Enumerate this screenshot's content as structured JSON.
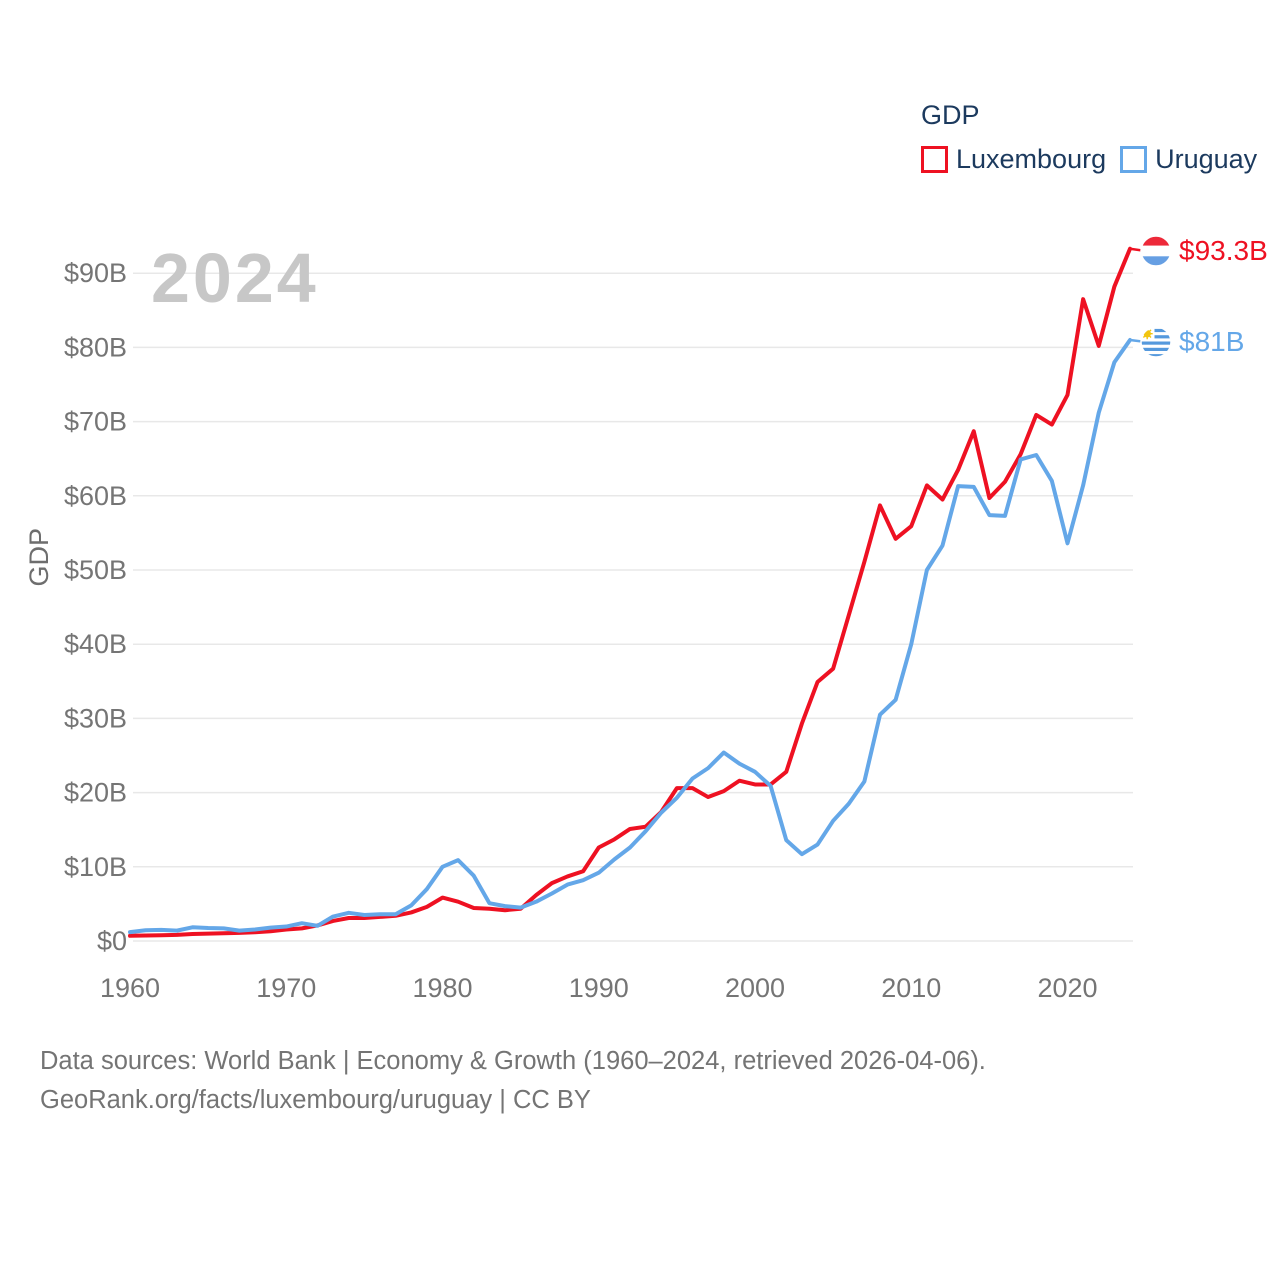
{
  "legend": {
    "title": "GDP",
    "items": [
      {
        "label": "Luxembourg",
        "color": "#ee1122"
      },
      {
        "label": "Uruguay",
        "color": "#64a7e8"
      }
    ]
  },
  "footer": {
    "line1": "Data sources: World Bank | Economy & Growth (1960–2024, retrieved 2026-04-06).",
    "line2": "GeoRank.org/facts/luxembourg/uruguay | CC BY"
  },
  "chart_data": {
    "type": "line",
    "title": "GDP",
    "ylabel": "GDP",
    "xlabel": "",
    "year_watermark": "2024",
    "legend_position": "top-right",
    "grid": "horizontal-only",
    "ylim": [
      0,
      95
    ],
    "xlim": [
      1960,
      2024
    ],
    "x_tick_years": [
      1960,
      1970,
      1980,
      1990,
      2000,
      2010,
      2020
    ],
    "y_tick_labels": [
      "$0",
      "$10B",
      "$20B",
      "$30B",
      "$40B",
      "$50B",
      "$60B",
      "$70B",
      "$80B",
      "$90B"
    ],
    "y_grid_values": [
      0,
      10,
      20,
      30,
      40,
      50,
      60,
      70,
      80,
      90
    ],
    "x": [
      1960,
      1961,
      1962,
      1963,
      1964,
      1965,
      1966,
      1967,
      1968,
      1969,
      1970,
      1971,
      1972,
      1973,
      1974,
      1975,
      1976,
      1977,
      1978,
      1979,
      1980,
      1981,
      1982,
      1983,
      1984,
      1985,
      1986,
      1987,
      1988,
      1989,
      1990,
      1991,
      1992,
      1993,
      1994,
      1995,
      1996,
      1997,
      1998,
      1999,
      2000,
      2001,
      2002,
      2003,
      2004,
      2005,
      2006,
      2007,
      2008,
      2009,
      2010,
      2011,
      2012,
      2013,
      2014,
      2015,
      2016,
      2017,
      2018,
      2019,
      2020,
      2021,
      2022,
      2023,
      2024
    ],
    "series": [
      {
        "name": "Luxembourg",
        "color": "#ee1122",
        "end_label": "$93.3B",
        "flag_icon": "luxembourg-flag-icon",
        "values": [
          0.7,
          0.74,
          0.78,
          0.83,
          0.94,
          1.0,
          1.05,
          1.1,
          1.18,
          1.32,
          1.55,
          1.7,
          2.1,
          2.7,
          3.1,
          3.1,
          3.25,
          3.4,
          3.85,
          4.6,
          5.85,
          5.3,
          4.45,
          4.35,
          4.15,
          4.35,
          6.2,
          7.8,
          8.7,
          9.4,
          12.6,
          13.7,
          15.1,
          15.4,
          17.4,
          20.6,
          20.6,
          19.4,
          20.2,
          21.6,
          21.1,
          21.1,
          22.8,
          29.3,
          34.9,
          36.7,
          43.9,
          51.1,
          58.7,
          54.2,
          55.9,
          61.4,
          59.5,
          63.5,
          68.7,
          59.7,
          61.9,
          65.6,
          70.9,
          69.6,
          73.6,
          86.5,
          80.2,
          88.2,
          93.3
        ]
      },
      {
        "name": "Uruguay",
        "color": "#64a7e8",
        "end_label": "$81B",
        "flag_icon": "uruguay-flag-icon",
        "values": [
          1.2,
          1.45,
          1.5,
          1.4,
          1.85,
          1.75,
          1.7,
          1.4,
          1.55,
          1.8,
          1.95,
          2.4,
          2.05,
          3.3,
          3.8,
          3.5,
          3.6,
          3.6,
          4.8,
          7.0,
          10.0,
          10.9,
          8.8,
          5.1,
          4.7,
          4.5,
          5.3,
          6.4,
          7.6,
          8.2,
          9.2,
          11.0,
          12.6,
          14.8,
          17.3,
          19.3,
          21.9,
          23.3,
          25.4,
          23.9,
          22.8,
          20.9,
          13.6,
          11.7,
          13.0,
          16.2,
          18.5,
          21.5,
          30.5,
          32.5,
          40.0,
          50.0,
          53.3,
          61.3,
          61.2,
          57.4,
          57.3,
          64.9,
          65.5,
          62.0,
          53.6,
          61.4,
          71.2,
          78.0,
          81.0
        ]
      }
    ]
  }
}
